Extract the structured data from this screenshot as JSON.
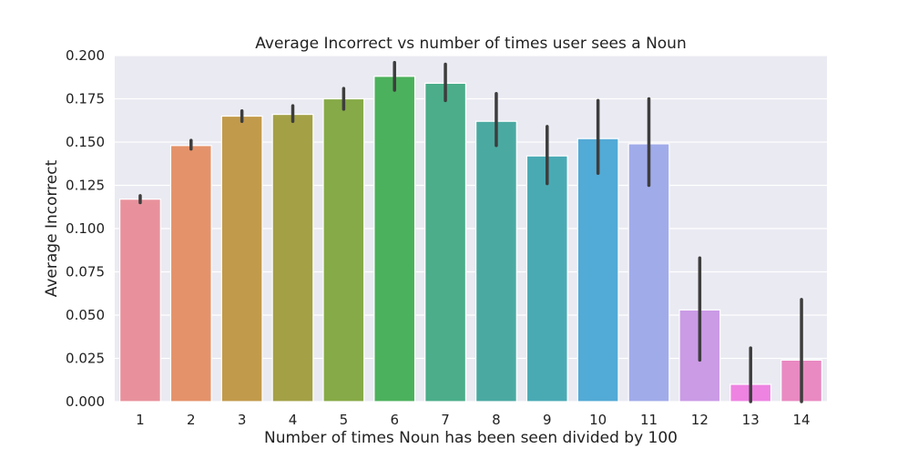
{
  "chart_data": {
    "type": "bar",
    "title": "Average Incorrect vs number of times user sees a Noun",
    "xlabel": "Number of times Noun has been seen divided by 100",
    "ylabel": "Average Incorrect",
    "categories": [
      "1",
      "2",
      "3",
      "4",
      "5",
      "6",
      "7",
      "8",
      "9",
      "10",
      "11",
      "12",
      "13",
      "14"
    ],
    "values": [
      0.117,
      0.148,
      0.165,
      0.166,
      0.175,
      0.188,
      0.184,
      0.162,
      0.142,
      0.152,
      0.149,
      0.053,
      0.01,
      0.024
    ],
    "error_low": [
      0.115,
      0.146,
      0.162,
      0.162,
      0.169,
      0.18,
      0.174,
      0.148,
      0.126,
      0.132,
      0.125,
      0.024,
      0.0,
      0.0
    ],
    "error_high": [
      0.119,
      0.151,
      0.168,
      0.171,
      0.181,
      0.196,
      0.195,
      0.178,
      0.159,
      0.174,
      0.175,
      0.083,
      0.031,
      0.059
    ],
    "colors": [
      "#e8919c",
      "#e4926a",
      "#c29a4b",
      "#a3a046",
      "#86aa47",
      "#4cb15c",
      "#4bad8a",
      "#4aaaa2",
      "#4aaab4",
      "#52aad6",
      "#a0abea",
      "#cb9be6",
      "#ee83e2",
      "#e98ac2"
    ],
    "ylim": [
      0,
      0.2
    ],
    "yticks": [
      "0.000",
      "0.025",
      "0.050",
      "0.075",
      "0.100",
      "0.125",
      "0.150",
      "0.175",
      "0.200"
    ],
    "grid": true,
    "background": "#eaeaf2",
    "error_bar_color": "#3d3d3d"
  }
}
